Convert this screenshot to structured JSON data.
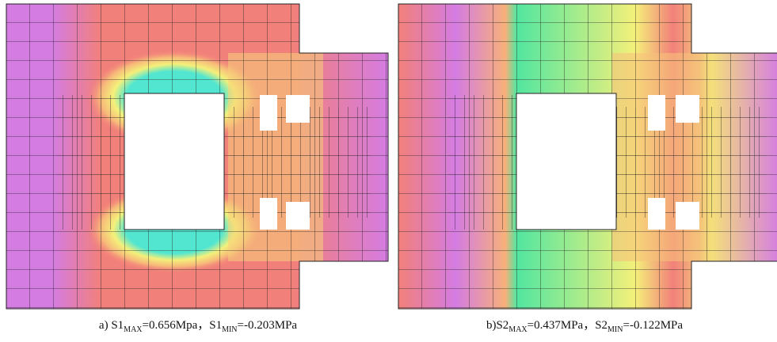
{
  "panels": [
    {
      "caption": {
        "prefix": "a) S1",
        "sub1": "MAX",
        "mid": "=0.656Mpa，S1",
        "sub2": "MIN",
        "suffix": "=-0.203MPa"
      }
    },
    {
      "caption": {
        "prefix": "b)S2",
        "sub1": "MAX",
        "mid": "=0.437MPa，S2",
        "sub2": "MIN",
        "suffix": "=-0.122MPa"
      }
    }
  ]
}
